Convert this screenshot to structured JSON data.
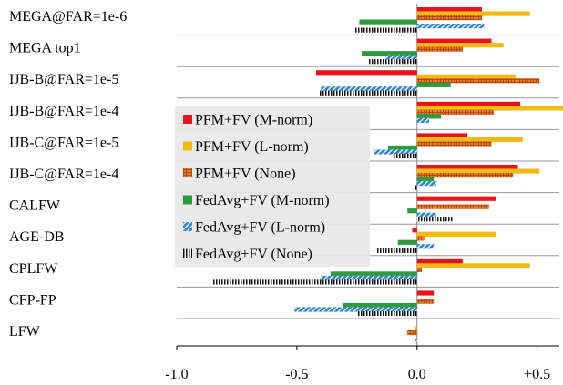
{
  "chart_data": {
    "type": "bar",
    "orientation": "horizontal",
    "categories": [
      "MEGA@FAR=1e-6",
      "MEGA top1",
      "IJB-B@FAR=1e-5",
      "IJB-B@FAR=1e-4",
      "IJB-C@FAR=1e-5",
      "IJB-C@FAR=1e-4",
      "CALFW",
      "AGE-DB",
      "CPLFW",
      "CFP-FP",
      "LFW"
    ],
    "xlim": [
      -1.0,
      0.6
    ],
    "xticks": [
      "-1.0",
      "-0.5",
      "0.0",
      "+0.5"
    ],
    "xtick_values": [
      -1.0,
      -0.5,
      0.0,
      0.5
    ],
    "grid": "horizontal-separators",
    "legend": "center-left",
    "series": [
      {
        "name": "PFM+FV (M-norm)",
        "color": "#e8141c",
        "pattern": "solid",
        "values": [
          0.27,
          0.31,
          -0.42,
          0.43,
          0.21,
          0.42,
          0.33,
          -0.02,
          0.19,
          0.07,
          0.0
        ]
      },
      {
        "name": "PFM+FV (L-norm)",
        "color": "#f2bb12",
        "pattern": "solid",
        "values": [
          0.47,
          0.36,
          0.41,
          0.61,
          0.44,
          0.51,
          0.0,
          0.33,
          0.47,
          0.0,
          -0.01
        ]
      },
      {
        "name": "PFM+FV (None)",
        "color": "#e87a2c",
        "pattern": "grid",
        "values": [
          0.27,
          0.19,
          0.51,
          0.32,
          0.31,
          0.4,
          0.3,
          0.03,
          0.02,
          0.07,
          -0.04
        ]
      },
      {
        "name": "FedAvg+FV (M-norm)",
        "color": "#2d9a3c",
        "pattern": "solid",
        "values": [
          -0.24,
          -0.23,
          0.14,
          0.1,
          -0.12,
          0.07,
          -0.04,
          -0.08,
          -0.36,
          -0.31,
          0.0
        ]
      },
      {
        "name": "FedAvg+FV (L-norm)",
        "color": "#2b84d6",
        "pattern": "hatch",
        "values": [
          0.28,
          -0.13,
          -0.4,
          0.05,
          -0.18,
          0.08,
          0.08,
          0.07,
          -0.4,
          -0.51,
          -0.01
        ]
      },
      {
        "name": "FedAvg+FV (None)",
        "color": "#222222",
        "pattern": "stripes",
        "values": [
          -0.26,
          -0.2,
          -0.41,
          0.0,
          -0.1,
          -0.01,
          0.15,
          -0.17,
          -0.85,
          -0.25,
          0.0
        ]
      }
    ]
  }
}
